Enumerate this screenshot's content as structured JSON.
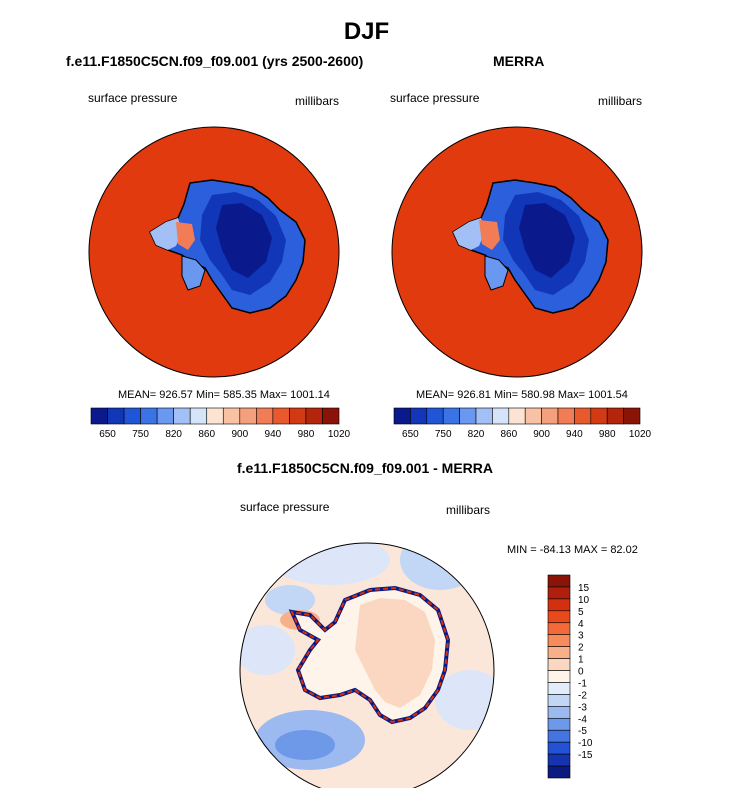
{
  "main_title": "DJF",
  "panels": {
    "model": {
      "title": "f.e11.F1850C5CN.f09_f09.001 (yrs 2500-2600)",
      "left_label": "surface pressure",
      "right_label": "millibars",
      "stats": "MEAN= 926.57  Min= 585.35  Max= 1001.14"
    },
    "obs": {
      "title": "MERRA",
      "left_label": "surface pressure",
      "right_label": "millibars",
      "stats": "MEAN= 926.81  Min= 580.98  Max= 1001.54"
    },
    "diff": {
      "title": "f.e11.F1850C5CN.f09_f09.001 - MERRA",
      "left_label": "surface pressure",
      "right_label": "millibars",
      "minmax": "MIN = -84.13 MAX =  82.02"
    }
  },
  "chart_data": [
    {
      "type": "heatmap",
      "projection": "south polar stereographic",
      "title": "f.e11.F1850C5CN.f09_f09.001 (yrs 2500-2600)",
      "variable": "surface pressure",
      "units": "millibars",
      "stats": {
        "mean": 926.57,
        "min": 585.35,
        "max": 1001.14
      },
      "colorbar": {
        "orientation": "horizontal",
        "tick_labels": [
          "650",
          "750",
          "820",
          "860",
          "900",
          "940",
          "980",
          "1020"
        ],
        "colors": [
          "#0a1a8c",
          "#1236b8",
          "#1f56d8",
          "#3a73e6",
          "#6a98f0",
          "#a2c0f5",
          "#d6e4fa",
          "#fde3d2",
          "#f9c2a4",
          "#f5a07c",
          "#f27c56",
          "#e85a2e",
          "#d23a14",
          "#b4260c",
          "#8a1408"
        ]
      },
      "ocean_color": "#e03a0e"
    },
    {
      "type": "heatmap",
      "projection": "south polar stereographic",
      "title": "MERRA",
      "variable": "surface pressure",
      "units": "millibars",
      "stats": {
        "mean": 926.81,
        "min": 580.98,
        "max": 1001.54
      },
      "colorbar": {
        "orientation": "horizontal",
        "tick_labels": [
          "650",
          "750",
          "820",
          "860",
          "900",
          "940",
          "980",
          "1020"
        ],
        "colors": [
          "#0a1a8c",
          "#1236b8",
          "#1f56d8",
          "#3a73e6",
          "#6a98f0",
          "#a2c0f5",
          "#d6e4fa",
          "#fde3d2",
          "#f9c2a4",
          "#f5a07c",
          "#f27c56",
          "#e85a2e",
          "#d23a14",
          "#b4260c",
          "#8a1408"
        ]
      },
      "ocean_color": "#e03a0e"
    },
    {
      "type": "heatmap",
      "projection": "south polar stereographic",
      "title": "f.e11.F1850C5CN.f09_f09.001 - MERRA",
      "variable": "surface pressure",
      "units": "millibars",
      "stats": {
        "min": -84.13,
        "max": 82.02
      },
      "colorbar": {
        "orientation": "vertical",
        "tick_labels": [
          "15",
          "10",
          "5",
          "4",
          "3",
          "2",
          "1",
          "0",
          "-1",
          "-2",
          "-3",
          "-4",
          "-5",
          "-10",
          "-15"
        ],
        "colors": [
          "#8a1408",
          "#b01e0c",
          "#d2300f",
          "#e84a1c",
          "#f26a3a",
          "#f68c5c",
          "#f8b08a",
          "#fbd6c0",
          "#fff4ea",
          "#e2ecfa",
          "#c2d6f5",
          "#9cbaf0",
          "#6e98e8",
          "#4474e2",
          "#2452d6",
          "#1634b0",
          "#0a1a80"
        ]
      }
    }
  ]
}
